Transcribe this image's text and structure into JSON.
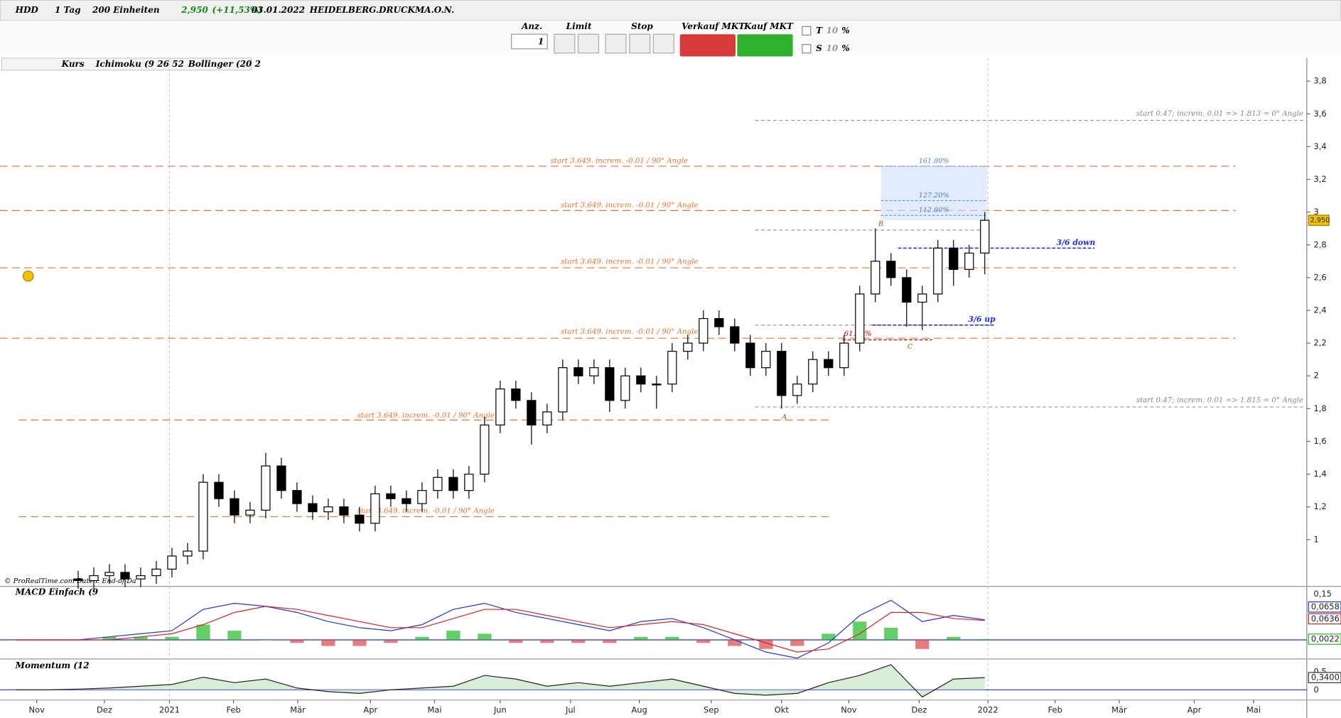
{
  "toolbar": {
    "symbol": "HDD",
    "interval": "1 Tag",
    "units": "200 Einheiten",
    "price": "2,950",
    "change": "(+11,53%)",
    "date": "03.01.2022",
    "name": "HEIDELBERG.DRUCKMA.O.N."
  },
  "order_panel": {
    "qty_label": "Anz.",
    "qty": 1,
    "limit": "Limit",
    "stop": "Stop",
    "sell": "Verkauf MKT",
    "buy": "Kauf MKT",
    "t": "T",
    "t_value": 10,
    "s": "S",
    "s_value": 10,
    "pct": "%"
  },
  "indicators": [
    "Kurs",
    "Ichimoku (9 26 52",
    "Bollinger (20 2"
  ],
  "credit": "© ProRealTime.com  Daten: End-of-Da",
  "chart_data": [
    {
      "type": "candlestick",
      "last_price_label": "2,950",
      "x": [
        5,
        6,
        7,
        8,
        9,
        10,
        11,
        12,
        13,
        14,
        15,
        16,
        17,
        18,
        19,
        20,
        21,
        22,
        23,
        24,
        25,
        26,
        27,
        28,
        29,
        30,
        31,
        32,
        33,
        34,
        35,
        36,
        37,
        38,
        39,
        40,
        41,
        42,
        43,
        44,
        45,
        46,
        47,
        48,
        49,
        50,
        51,
        52,
        53,
        54,
        55,
        56,
        57,
        58,
        59,
        60,
        61,
        62,
        63
      ],
      "open": [
        0.76,
        0.75,
        0.78,
        0.8,
        0.76,
        0.78,
        0.82,
        0.9,
        0.93,
        1.35,
        1.25,
        1.15,
        1.18,
        1.45,
        1.3,
        1.22,
        1.17,
        1.2,
        1.15,
        1.1,
        1.28,
        1.25,
        1.22,
        1.3,
        1.38,
        1.3,
        1.4,
        1.7,
        1.92,
        1.85,
        1.7,
        1.78,
        2.05,
        2.0,
        2.05,
        1.85,
        2.0,
        1.95,
        1.95,
        2.15,
        2.2,
        2.35,
        2.3,
        2.2,
        2.05,
        2.15,
        1.88,
        1.95,
        2.1,
        2.05,
        2.2,
        2.5,
        2.7,
        2.6,
        2.45,
        2.5,
        2.78,
        2.65,
        2.75
      ],
      "high": [
        0.81,
        0.83,
        0.85,
        0.85,
        0.83,
        0.87,
        0.95,
        0.98,
        1.4,
        1.4,
        1.3,
        1.23,
        1.53,
        1.5,
        1.35,
        1.27,
        1.25,
        1.25,
        1.2,
        1.33,
        1.33,
        1.3,
        1.35,
        1.43,
        1.43,
        1.45,
        1.75,
        1.97,
        1.97,
        1.9,
        1.83,
        2.1,
        2.1,
        2.1,
        2.1,
        2.05,
        2.05,
        2.0,
        2.2,
        2.25,
        2.4,
        2.4,
        2.35,
        2.25,
        2.2,
        2.2,
        2.0,
        2.15,
        2.15,
        2.25,
        2.55,
        2.9,
        2.75,
        2.65,
        2.55,
        2.83,
        2.83,
        2.8,
        3.0
      ],
      "low": [
        0.7,
        0.7,
        0.73,
        0.71,
        0.71,
        0.73,
        0.77,
        0.85,
        0.88,
        1.2,
        1.1,
        1.1,
        1.13,
        1.25,
        1.17,
        1.12,
        1.12,
        1.1,
        1.05,
        1.05,
        1.2,
        1.17,
        1.17,
        1.25,
        1.25,
        1.25,
        1.35,
        1.65,
        1.8,
        1.58,
        1.65,
        1.73,
        1.95,
        1.95,
        1.78,
        1.8,
        1.9,
        1.8,
        1.9,
        2.1,
        2.15,
        2.25,
        2.15,
        2.0,
        2.0,
        1.8,
        1.83,
        1.9,
        2.0,
        2.0,
        2.15,
        2.45,
        2.55,
        2.3,
        2.28,
        2.45,
        2.55,
        2.6,
        2.62
      ],
      "close": [
        0.75,
        0.78,
        0.8,
        0.76,
        0.78,
        0.82,
        0.9,
        0.93,
        1.35,
        1.25,
        1.15,
        1.18,
        1.45,
        1.3,
        1.22,
        1.17,
        1.2,
        1.15,
        1.1,
        1.28,
        1.25,
        1.22,
        1.3,
        1.38,
        1.3,
        1.4,
        1.7,
        1.92,
        1.85,
        1.7,
        1.78,
        2.05,
        2.0,
        2.05,
        1.85,
        2.0,
        1.95,
        1.95,
        2.15,
        2.2,
        2.35,
        2.3,
        2.2,
        2.05,
        2.15,
        1.88,
        1.95,
        2.1,
        2.05,
        2.2,
        2.5,
        2.7,
        2.6,
        2.45,
        2.5,
        2.78,
        2.65,
        2.75,
        2.95
      ],
      "xlim": [
        0,
        83.6
      ],
      "xticks": [
        {
          "value": 2.35,
          "label": "Nov"
        },
        {
          "value": 6.68,
          "label": "Dez"
        },
        {
          "value": 10.84,
          "label": "2021"
        },
        {
          "value": 14.94,
          "label": "Feb"
        },
        {
          "value": 19.05,
          "label": "Mär"
        },
        {
          "value": 23.7,
          "label": "Apr"
        },
        {
          "value": 27.8,
          "label": "Mai"
        },
        {
          "value": 32.0,
          "label": "Jun"
        },
        {
          "value": 36.5,
          "label": "Jul"
        },
        {
          "value": 40.9,
          "label": "Aug"
        },
        {
          "value": 45.5,
          "label": "Sep"
        },
        {
          "value": 50.0,
          "label": "Okt"
        },
        {
          "value": 54.3,
          "label": "Nov"
        },
        {
          "value": 58.8,
          "label": "Dez"
        },
        {
          "value": 63.2,
          "label": "2022"
        },
        {
          "value": 67.5,
          "label": "Feb"
        },
        {
          "value": 71.6,
          "label": "Mär"
        },
        {
          "value": 76.4,
          "label": "Apr"
        },
        {
          "value": 80.2,
          "label": "Mai"
        }
      ],
      "ylim": [
        0.72,
        3.94
      ],
      "yticks": [
        {
          "value": 3.8,
          "label": "3,8"
        },
        {
          "value": 3.6,
          "label": "3,6"
        },
        {
          "value": 3.4,
          "label": "3,4"
        },
        {
          "value": 3.2,
          "label": "3,2"
        },
        3,
        {
          "value": 2.8,
          "label": "2,8"
        },
        {
          "value": 2.6,
          "label": "2,6"
        },
        {
          "value": 2.4,
          "label": "2,4"
        },
        {
          "value": 2.2,
          "label": "2,2"
        },
        2,
        {
          "value": 1.8,
          "label": "1,8"
        },
        {
          "value": 1.6,
          "label": "1,6"
        },
        {
          "value": 1.4,
          "label": "1,4"
        },
        {
          "value": 1.2,
          "label": "1,2"
        },
        1
      ],
      "levels": [
        {
          "value": 3.28,
          "label": "start 3.649. increm. -0.01 / 90° Angle"
        },
        {
          "value": 3.01,
          "label": "start 3.649. increm. -0.01 / 90° Angle"
        },
        {
          "value": 2.66,
          "label": "start 3.649. increm. -0.01 / 90° Angle"
        },
        {
          "value": 2.23,
          "label": "start 3.649. increm. -0.01 / 90° Angle"
        },
        {
          "value": 1.73,
          "label": "start 3.649. increm. -0.01 / 90° Angle"
        },
        {
          "value": 1.14,
          "label": "start 3.649. increm. -0.01 / 90° Angle"
        }
      ],
      "gray_levels": [
        {
          "value": 3.56,
          "label": "start 0.47; increm. 0.01 => 1.813 = 0° Angle"
        },
        {
          "value": 2.89
        },
        {
          "value": 2.31
        },
        {
          "value": 1.81,
          "label": "start 0.47; increm. 0.01 => 1.815 = 0° Angle"
        }
      ],
      "fib_zone": [
        2.95,
        3.28
      ],
      "fib_levels": [
        {
          "value": 3.28,
          "label": "161.80%"
        },
        {
          "value": 3.07,
          "label": "127.20%"
        },
        {
          "value": 2.98,
          "label": "112.80%"
        }
      ],
      "blue_levels": [
        {
          "value": 2.78,
          "label": "3/6 down"
        },
        {
          "value": 2.31,
          "label": "3/6 up"
        }
      ],
      "red_level": {
        "value": 2.22,
        "label": "61.80%"
      },
      "waves": [
        "A",
        "B",
        "C"
      ]
    },
    {
      "type": "macd",
      "title": "MACD Einfach (9",
      "x": [
        1,
        3,
        5,
        7,
        9,
        11,
        13,
        15,
        17,
        19,
        21,
        23,
        25,
        27,
        29,
        31,
        33,
        35,
        37,
        39,
        41,
        43,
        45,
        47,
        49,
        51,
        53,
        55,
        57,
        59,
        61,
        63
      ],
      "series": [
        {
          "name": "MACD",
          "color": "#2233dd",
          "values": [
            0,
            0,
            0,
            0.01,
            0.02,
            0.03,
            0.1,
            0.12,
            0.11,
            0.09,
            0.06,
            0.04,
            0.03,
            0.05,
            0.1,
            0.12,
            0.09,
            0.07,
            0.05,
            0.03,
            0.06,
            0.07,
            0.04,
            0,
            -0.04,
            -0.06,
            -0.01,
            0.08,
            0.13,
            0.06,
            0.08,
            0.0658
          ],
          "last_label": "0,0658"
        },
        {
          "name": "Signal",
          "color": "#dd2222",
          "values": [
            0,
            0,
            0,
            0,
            0.01,
            0.02,
            0.05,
            0.09,
            0.11,
            0.1,
            0.08,
            0.06,
            0.04,
            0.04,
            0.07,
            0.1,
            0.1,
            0.08,
            0.06,
            0.04,
            0.05,
            0.06,
            0.05,
            0.02,
            -0.01,
            -0.04,
            -0.03,
            0.02,
            0.09,
            0.09,
            0.07,
            0.0636
          ],
          "last_label": "0,0636"
        },
        {
          "name": "Histogramm",
          "color": "#22bb22",
          "values": [
            0,
            0,
            0,
            0.01,
            0.01,
            0.01,
            0.05,
            0.03,
            0,
            -0.01,
            -0.02,
            -0.02,
            -0.01,
            0.01,
            0.03,
            0.02,
            -0.01,
            -0.01,
            -0.01,
            -0.01,
            0.01,
            0.01,
            -0.01,
            -0.02,
            -0.03,
            -0.02,
            0.02,
            0.06,
            0.04,
            -0.03,
            0.01,
            0.0022
          ],
          "last_label": "0,0022"
        }
      ],
      "ylim": [
        -0.06,
        0.17
      ],
      "yticks": [
        {
          "value": 0.15,
          "label": "0,15"
        }
      ]
    },
    {
      "type": "momentum",
      "title": "Momentum (12",
      "x": [
        1,
        3,
        5,
        7,
        9,
        11,
        13,
        15,
        17,
        19,
        21,
        23,
        25,
        27,
        29,
        31,
        33,
        35,
        37,
        39,
        41,
        43,
        45,
        47,
        49,
        51,
        53,
        55,
        57,
        59,
        61,
        63
      ],
      "values": [
        0,
        0,
        0.02,
        0.05,
        0.1,
        0.15,
        0.35,
        0.2,
        0.3,
        0.05,
        -0.05,
        -0.1,
        0,
        0.05,
        0.1,
        0.4,
        0.3,
        0.1,
        0.2,
        0.1,
        0.2,
        0.3,
        0.1,
        -0.1,
        -0.15,
        -0.1,
        0.2,
        0.4,
        0.7,
        -0.2,
        0.3,
        0.34
      ],
      "last_label": "0,3400",
      "color": "#222222",
      "ylim": [
        -0.26,
        0.81
      ],
      "yticks": [
        {
          "value": 0.5,
          "label": "0,5"
        },
        0
      ]
    }
  ]
}
